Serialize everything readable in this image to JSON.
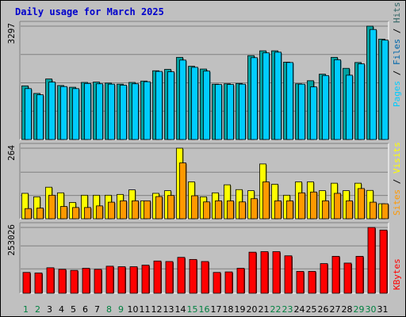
{
  "chart_data": [
    {
      "type": "bar",
      "title": "Daily usage for March 2025",
      "categories": [
        "1",
        "2",
        "3",
        "4",
        "5",
        "6",
        "7",
        "8",
        "9",
        "10",
        "11",
        "12",
        "13",
        "14",
        "15",
        "16",
        "17",
        "18",
        "19",
        "20",
        "21",
        "22",
        "23",
        "24",
        "25",
        "26",
        "27",
        "28",
        "29",
        "30",
        "31"
      ],
      "weekend_days": [
        "1",
        "2",
        "8",
        "9",
        "15",
        "16",
        "22",
        "23",
        "29",
        "30"
      ],
      "panel": "top",
      "max_label": "3297",
      "ylim": [
        0,
        3297
      ],
      "legend": [
        "Pages",
        "Files",
        "Hits"
      ],
      "legend_colors": {
        "Pages": "#00ccff",
        "Files": "#0066aa",
        "Hits": "#336666"
      },
      "series": [
        {
          "name": "Hits",
          "color": "#00a0a0",
          "values": [
            1560,
            1340,
            1760,
            1570,
            1520,
            1660,
            1670,
            1640,
            1610,
            1660,
            1700,
            2000,
            2040,
            2390,
            2130,
            2050,
            1610,
            1620,
            1630,
            2440,
            2580,
            2580,
            2250,
            1620,
            1710,
            1900,
            2390,
            2070,
            2240,
            3297,
            2920
          ]
        },
        {
          "name": "Files",
          "color": "#00ccff",
          "values": [
            1480,
            1300,
            1670,
            1540,
            1480,
            1630,
            1620,
            1610,
            1580,
            1620,
            1680,
            1980,
            1970,
            2310,
            2100,
            1990,
            1600,
            1600,
            1610,
            2380,
            2520,
            2540,
            2240,
            1610,
            1530,
            1860,
            2320,
            1870,
            2200,
            3200,
            2890
          ]
        }
      ]
    },
    {
      "type": "bar",
      "panel": "middle",
      "max_label": "264",
      "ylim": [
        0,
        264
      ],
      "legend": [
        "Sites",
        "Visits"
      ],
      "legend_colors": {
        "Sites": "#ff9900",
        "Visits": "#ffff00"
      },
      "series": [
        {
          "name": "Visits",
          "color": "#ffff00",
          "values": [
            95,
            82,
            118,
            97,
            61,
            88,
            88,
            88,
            91,
            108,
            67,
            95,
            105,
            264,
            138,
            82,
            97,
            127,
            109,
            105,
            205,
            129,
            88,
            138,
            138,
            105,
            133,
            105,
            133,
            106,
            56
          ]
        },
        {
          "name": "Sites",
          "color": "#ff9900",
          "values": [
            38,
            40,
            88,
            46,
            42,
            42,
            48,
            62,
            67,
            67,
            67,
            83,
            87,
            209,
            86,
            63,
            67,
            67,
            63,
            75,
            138,
            67,
            67,
            97,
            100,
            67,
            95,
            67,
            113,
            62,
            56
          ]
        }
      ]
    },
    {
      "type": "bar",
      "panel": "bottom",
      "max_label": "253026",
      "ylim": [
        0,
        253026
      ],
      "legend": [
        "KBytes"
      ],
      "legend_colors": {
        "KBytes": "#ff0000"
      },
      "series": [
        {
          "name": "KBytes",
          "color": "#ff0000",
          "values": [
            80000,
            78000,
            98000,
            92000,
            88000,
            96000,
            92000,
            104000,
            102000,
            102000,
            108000,
            124000,
            122000,
            138000,
            130000,
            122000,
            80000,
            82000,
            96000,
            158000,
            160000,
            160000,
            144000,
            84000,
            84000,
            114000,
            142000,
            116000,
            142000,
            253026,
            243000
          ]
        }
      ]
    }
  ]
}
